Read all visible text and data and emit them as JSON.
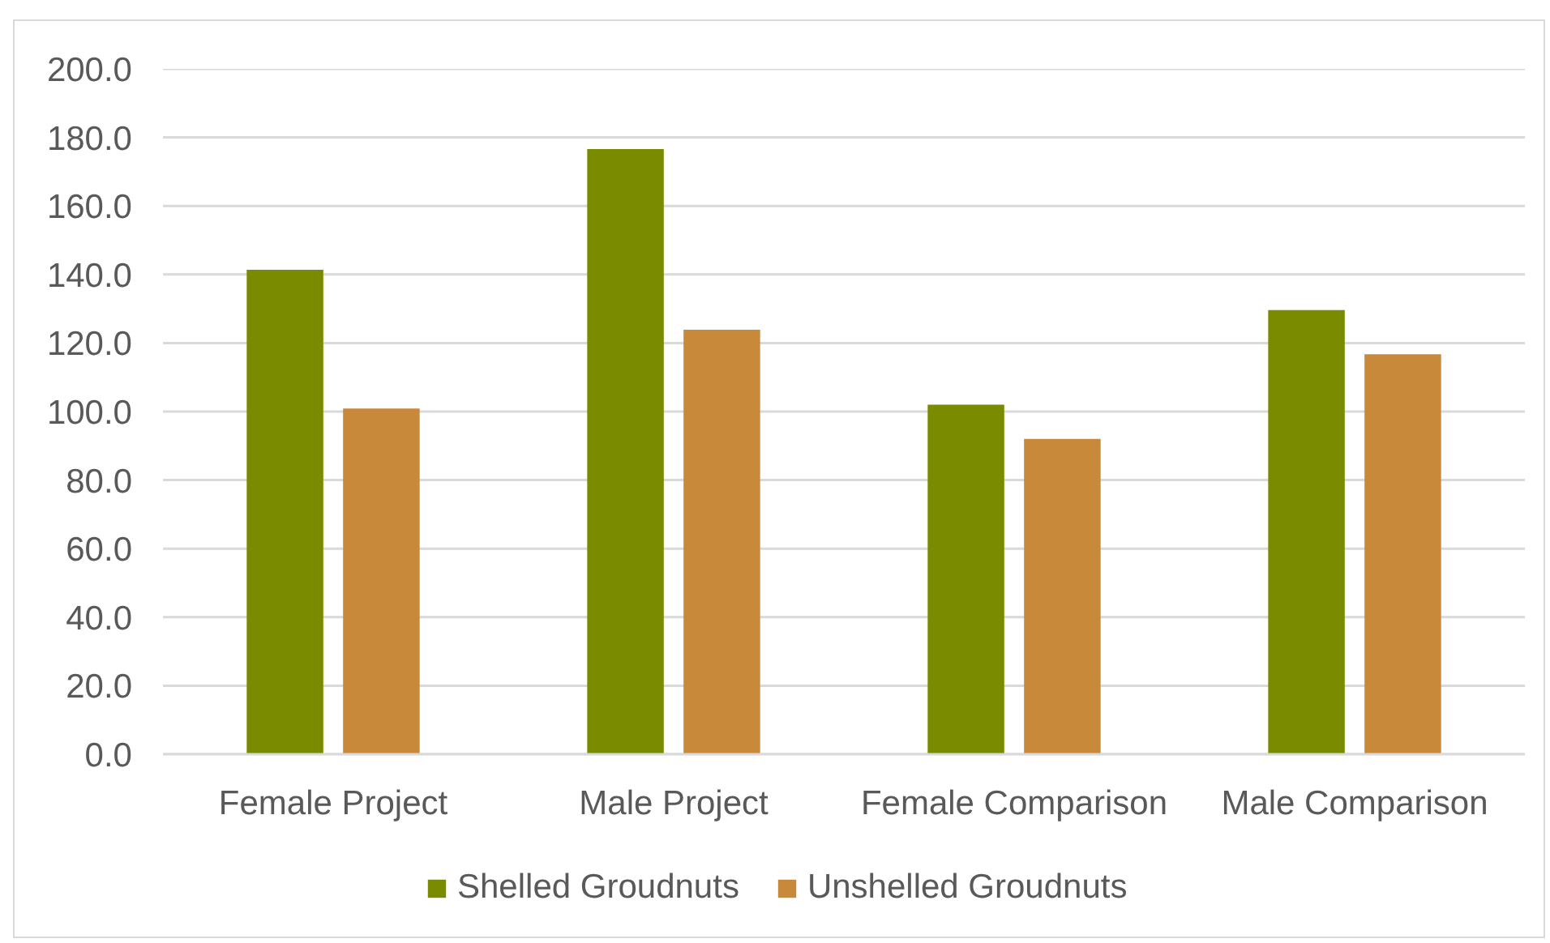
{
  "chart_data": {
    "type": "bar",
    "categories": [
      "Female Project",
      "Male Project",
      "Female Comparison",
      "Male Comparison"
    ],
    "series": [
      {
        "name": "Shelled Groudnuts",
        "color": "#7a8b00",
        "values": [
          141.4,
          176.6,
          102.0,
          129.6
        ]
      },
      {
        "name": "Unshelled Groudnuts",
        "color": "#c8893b",
        "values": [
          100.9,
          123.9,
          92.0,
          116.7
        ]
      }
    ],
    "ylim": [
      0,
      200
    ],
    "yticks": [
      {
        "value": 0,
        "label": "0.0"
      },
      {
        "value": 20,
        "label": "20.0"
      },
      {
        "value": 40,
        "label": "40.0"
      },
      {
        "value": 60,
        "label": "60.0"
      },
      {
        "value": 80,
        "label": "80.0"
      },
      {
        "value": 100,
        "label": "100.0"
      },
      {
        "value": 120,
        "label": "120.0"
      },
      {
        "value": 140,
        "label": "140.0"
      },
      {
        "value": 160,
        "label": "160.0"
      },
      {
        "value": 180,
        "label": "180.0"
      },
      {
        "value": 200,
        "label": "200.0"
      }
    ],
    "grid": "y",
    "legend": "bottom"
  }
}
